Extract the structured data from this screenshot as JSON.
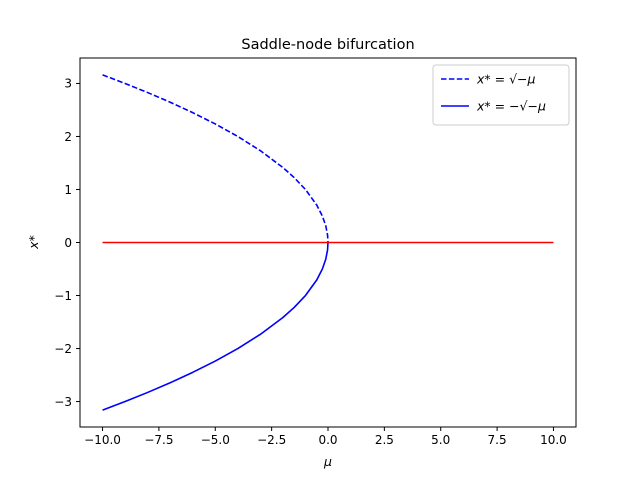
{
  "chart_data": {
    "type": "line",
    "title": "Saddle-node bifurcation",
    "xlabel": "μ",
    "ylabel": "x*",
    "xlim": [
      -11,
      11
    ],
    "ylim": [
      -3.48,
      3.48
    ],
    "x_ticks": [
      -10.0,
      -7.5,
      -5.0,
      -2.5,
      0.0,
      2.5,
      5.0,
      7.5,
      10.0
    ],
    "x_tick_labels": [
      "−10.0",
      "−7.5",
      "−5.0",
      "−2.5",
      "0.0",
      "2.5",
      "5.0",
      "7.5",
      "10.0"
    ],
    "y_ticks": [
      -3,
      -2,
      -1,
      0,
      1,
      2,
      3
    ],
    "y_tick_labels": [
      "−3",
      "−2",
      "−1",
      "0",
      "1",
      "2",
      "3"
    ],
    "grid": false,
    "legend_position": "upper right",
    "series": [
      {
        "name": "x* = √−μ",
        "color": "#0000ff",
        "linestyle": "dashed",
        "x": [
          -10,
          -9,
          -8,
          -7,
          -6,
          -5,
          -4,
          -3,
          -2,
          -1.5,
          -1,
          -0.5,
          -0.25,
          -0.1,
          -0.02,
          0
        ],
        "y": [
          3.162,
          3.0,
          2.828,
          2.646,
          2.449,
          2.236,
          2.0,
          1.732,
          1.414,
          1.225,
          1.0,
          0.707,
          0.5,
          0.316,
          0.141,
          0
        ]
      },
      {
        "name": "x* = −√−μ",
        "color": "#0000ff",
        "linestyle": "solid",
        "x": [
          -10,
          -9,
          -8,
          -7,
          -6,
          -5,
          -4,
          -3,
          -2,
          -1.5,
          -1,
          -0.5,
          -0.25,
          -0.1,
          -0.02,
          0
        ],
        "y": [
          -3.162,
          -3.0,
          -2.828,
          -2.646,
          -2.449,
          -2.236,
          -2.0,
          -1.732,
          -1.414,
          -1.225,
          -1.0,
          -0.707,
          -0.5,
          -0.316,
          -0.141,
          0
        ]
      },
      {
        "color": "#ff0000",
        "linestyle": "solid",
        "x": [
          -10,
          10
        ],
        "y": [
          0,
          0
        ]
      }
    ]
  }
}
